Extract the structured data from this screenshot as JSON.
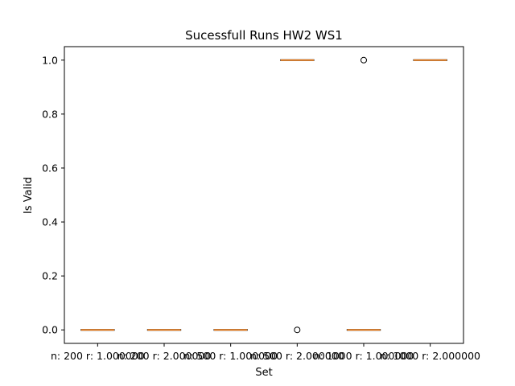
{
  "chart_data": {
    "type": "box",
    "title": "Sucessfull Runs HW2 WS1",
    "xlabel": "Set",
    "ylabel": "Is Valid",
    "ylim": [
      -0.05,
      1.05
    ],
    "yticks": [
      "0.0",
      "0.2",
      "0.4",
      "0.6",
      "0.8",
      "1.0"
    ],
    "categories": [
      "n: 200 r: 1.000000",
      "n: 200 r: 2.000000",
      "n: 500 r: 1.000000",
      "n: 500 r: 2.000000",
      "n: 1000 r: 1.000000",
      "n: 1000 r: 2.000000"
    ],
    "boxes": [
      {
        "median": 0,
        "q1": 0,
        "q3": 0,
        "whisker_low": 0,
        "whisker_high": 0,
        "outliers": []
      },
      {
        "median": 0,
        "q1": 0,
        "q3": 0,
        "whisker_low": 0,
        "whisker_high": 0,
        "outliers": []
      },
      {
        "median": 0,
        "q1": 0,
        "q3": 0,
        "whisker_low": 0,
        "whisker_high": 0,
        "outliers": []
      },
      {
        "median": 1,
        "q1": 1,
        "q3": 1,
        "whisker_low": 1,
        "whisker_high": 1,
        "outliers": [
          0
        ]
      },
      {
        "median": 0,
        "q1": 0,
        "q3": 0,
        "whisker_low": 0,
        "whisker_high": 0,
        "outliers": [
          1
        ]
      },
      {
        "median": 1,
        "q1": 1,
        "q3": 1,
        "whisker_low": 1,
        "whisker_high": 1,
        "outliers": []
      }
    ],
    "median_color": "#ff7f0e",
    "box_color": "#000000",
    "grid": false
  }
}
